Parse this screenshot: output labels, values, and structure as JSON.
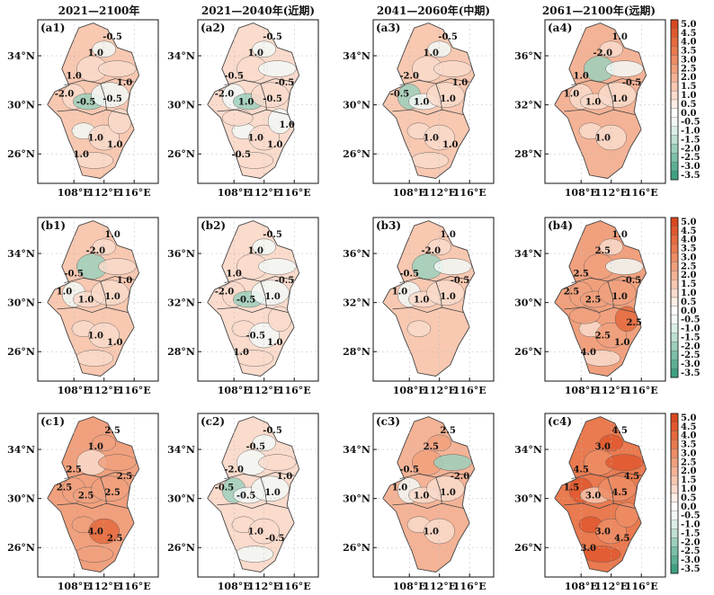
{
  "column_titles": [
    "2021—2100年",
    "2021—2040年(近期)",
    "2041—2060年(中期)",
    "2061—2100年(远期)"
  ],
  "palette": {
    "levels": [
      -3.5,
      -3.0,
      -2.5,
      -2.0,
      -1.5,
      -1.0,
      -0.5,
      0.0,
      0.5,
      1.0,
      1.5,
      2.0,
      2.5,
      3.0,
      3.5,
      4.0,
      4.5,
      5.0
    ],
    "colors": [
      "#3fa083",
      "#5cb095",
      "#7cc0a8",
      "#9dd0bc",
      "#bfe0d2",
      "#dcefe7",
      "#f2f8f6",
      "#ffffff",
      "#fdeee6",
      "#fadbcc",
      "#f8c8b1",
      "#f4b396",
      "#f1a07d",
      "#ee8d65",
      "#ea7a4f",
      "#e66a3e",
      "#e1592e",
      "#d9481f"
    ]
  },
  "lat_ticks_a": [
    "34°N",
    "30°N",
    "26°N"
  ],
  "lat_ticks_b": [
    "36°N",
    "32°N",
    "28°N"
  ],
  "lat_ticks_c": [
    "36°N",
    "32°N",
    "28°N"
  ],
  "lon_ticks": [
    "108°E",
    "112°E",
    "116°E"
  ],
  "panels": [
    {
      "id": "a1",
      "label": "(a1)",
      "lat": "a",
      "base": 1.2,
      "contours": [
        "-0.5",
        "1.0",
        "1.0",
        "1.0",
        "-2.0",
        "-0.5",
        "-0.5",
        "1.0",
        "1.0",
        "1.0"
      ]
    },
    {
      "id": "a2",
      "label": "(a2)",
      "lat": "a",
      "base": 0.7,
      "contours": [
        "-0.5",
        "1.0",
        "-0.5",
        "-0.5",
        "-2.0",
        "1.0",
        "-0.5",
        "1.0",
        "1.0",
        "-0.5",
        "1.0"
      ]
    },
    {
      "id": "a3",
      "label": "(a3)",
      "lat": "a",
      "base": 1.2,
      "contours": [
        "-0.5",
        "1.0",
        "1.0",
        "-2.0",
        "-0.5",
        "1.0",
        "1.0",
        "1.0",
        "1.0"
      ]
    },
    {
      "id": "a4",
      "label": "(a4)",
      "lat": "b",
      "base": 1.6,
      "contours": [
        "1.0",
        "-2.0",
        "-0.5",
        "1.0",
        "1.0",
        "1.0",
        "1.0",
        "1.0"
      ]
    },
    {
      "id": "b1",
      "label": "(b1)",
      "lat": "a",
      "base": 1.3,
      "contours": [
        "1.0",
        "-2.0",
        "1.0",
        "-0.5",
        "1.0",
        "1.0",
        "1.0",
        "1.0",
        "1.0"
      ]
    },
    {
      "id": "b2",
      "label": "(b2)",
      "lat": "b",
      "base": 1.0,
      "contours": [
        "-0.5",
        "1.0",
        "-0.5",
        "1.0",
        "-2.0",
        "-0.5",
        "1.0",
        "-0.5",
        "1.0",
        "1.0"
      ]
    },
    {
      "id": "b3",
      "label": "(b3)",
      "lat": "b",
      "base": 1.3,
      "contours": [
        "1.0",
        "-2.0",
        "-0.5",
        "-0.5",
        "1.0",
        "1.0",
        "1.0"
      ]
    },
    {
      "id": "b4",
      "label": "(b4)",
      "lat": "a",
      "base": 2.2,
      "contours": [
        "1.0",
        "2.5",
        "-0.5",
        "2.5",
        "2.5",
        "2.5",
        "1.0",
        "2.5",
        "1.0",
        "4.0",
        "2.5"
      ]
    },
    {
      "id": "c1",
      "label": "(c1)",
      "lat": "a",
      "base": 2.2,
      "contours": [
        "2.5",
        "1.0",
        "2.5",
        "2.5",
        "2.5",
        "2.5",
        "2.5",
        "4.0",
        "2.5"
      ]
    },
    {
      "id": "c2",
      "label": "(c2)",
      "lat": "a",
      "base": 0.9,
      "contours": [
        "-0.5",
        "-0.5",
        "1.0",
        "-2.0",
        "-0.5",
        "-0.5",
        "1.0",
        "1.0",
        "-0.5"
      ]
    },
    {
      "id": "c3",
      "label": "(c3)",
      "lat": "a",
      "base": 1.8,
      "contours": [
        "2.5",
        "2.5",
        "-2.0",
        "-0.5",
        "1.0",
        "1.0",
        "1.0",
        "1.0"
      ]
    },
    {
      "id": "c4",
      "label": "(c4)",
      "lat": "a",
      "base": 3.3,
      "contours": [
        "4.5",
        "3.0",
        "4.5",
        "4.5",
        "1.5",
        "3.0",
        "4.5",
        "3.0",
        "4.5",
        "3.0"
      ]
    }
  ],
  "colorbar_labels": [
    "5.0",
    "4.5",
    "4.0",
    "3.5",
    "3.0",
    "2.5",
    "2.0",
    "1.5",
    "1.0",
    "0.5",
    "0.0",
    "-0.5",
    "-1.0",
    "-1.5",
    "-2.0",
    "-2.5",
    "-3.0",
    "-3.5"
  ]
}
